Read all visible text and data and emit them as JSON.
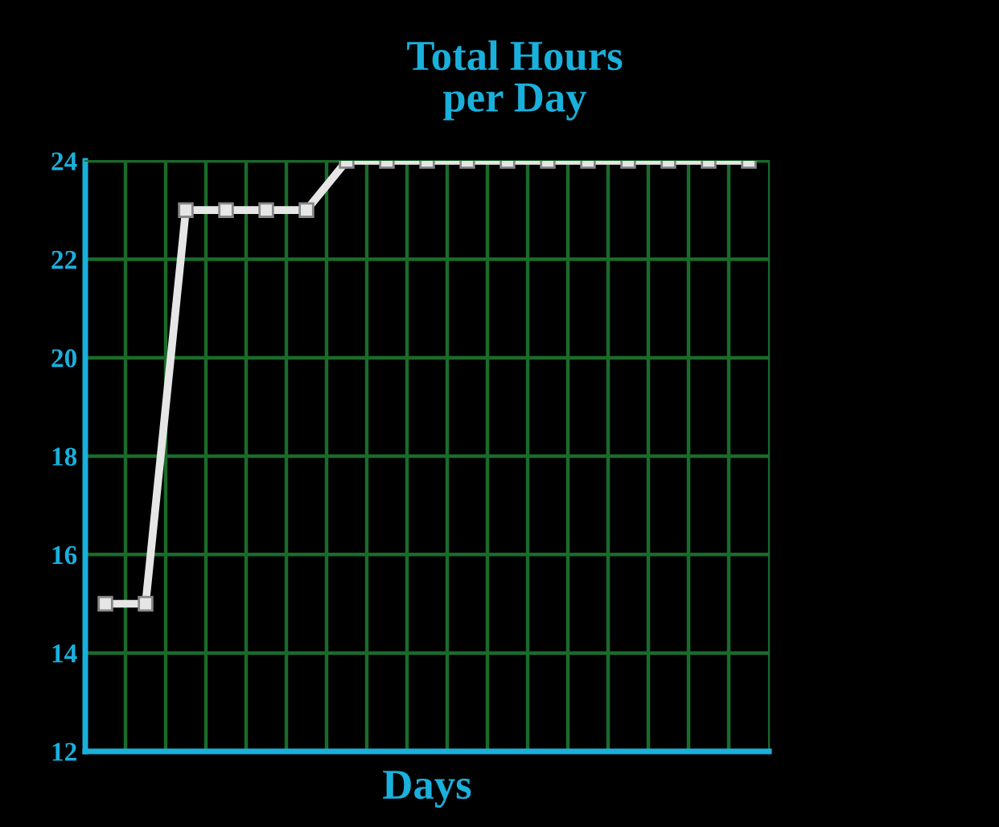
{
  "chart_data": {
    "type": "line",
    "title": "Total Hours\nper Day",
    "xlabel": "Days",
    "categories": [
      null,
      null,
      null,
      null,
      null,
      null,
      null,
      null,
      null,
      null,
      null,
      null,
      null,
      null,
      null,
      null,
      null
    ],
    "series": [
      {
        "color": "#e6e6e6",
        "values": [
          15,
          15,
          23,
          23,
          23,
          23,
          24,
          24,
          24,
          24,
          24,
          24,
          24,
          24,
          24,
          24,
          24
        ]
      }
    ],
    "ylim": [
      12,
      24
    ],
    "yticks": [
      12,
      14,
      16,
      18,
      20,
      22,
      24
    ],
    "grid": true,
    "tick_labels": "y",
    "marker": "square",
    "line_style": "solid"
  }
}
